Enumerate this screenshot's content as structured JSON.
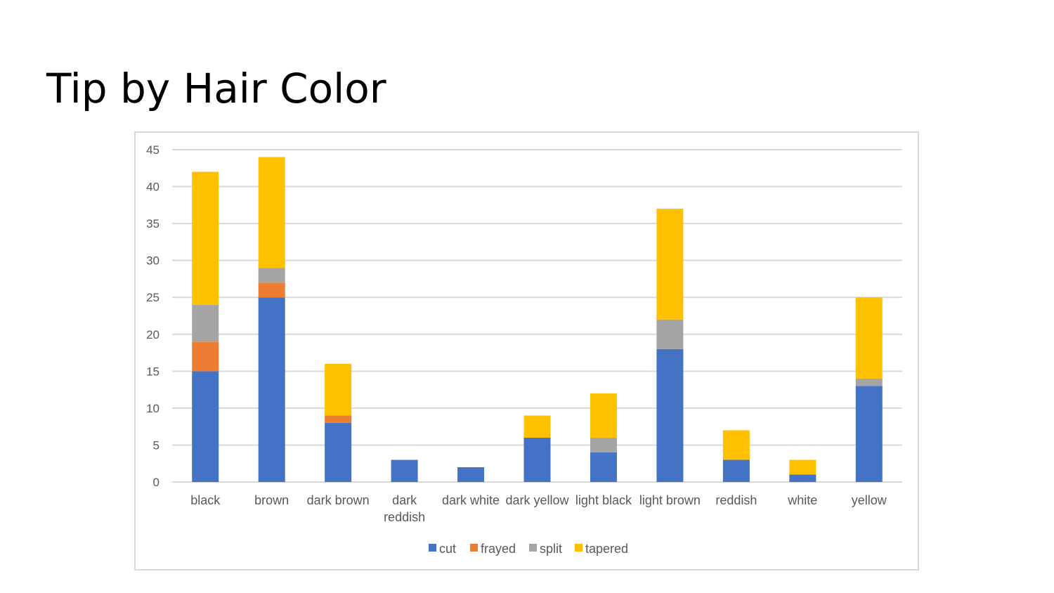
{
  "slide": {
    "title": "Tip by Hair Color"
  },
  "chart_data": {
    "type": "bar",
    "stacked": true,
    "title": "",
    "xlabel": "",
    "ylabel": "",
    "ylim": [
      0,
      45
    ],
    "yticks": [
      0,
      5,
      10,
      15,
      20,
      25,
      30,
      35,
      40,
      45
    ],
    "grid": true,
    "legend_position": "bottom",
    "categories": [
      "black",
      "brown",
      "dark brown",
      "dark reddish",
      "dark white",
      "dark yellow",
      "light black",
      "light brown",
      "reddish",
      "white",
      "yellow"
    ],
    "category_lines": [
      [
        "black"
      ],
      [
        "brown"
      ],
      [
        "dark brown"
      ],
      [
        "dark",
        "reddish"
      ],
      [
        "dark white"
      ],
      [
        "dark yellow"
      ],
      [
        "light black"
      ],
      [
        "light brown"
      ],
      [
        "reddish"
      ],
      [
        "white"
      ],
      [
        "yellow"
      ]
    ],
    "series": [
      {
        "name": "cut",
        "color": "#4472c4",
        "values": [
          15,
          25,
          8,
          3,
          2,
          6,
          4,
          18,
          3,
          1,
          13
        ]
      },
      {
        "name": "frayed",
        "color": "#ed7d31",
        "values": [
          4,
          2,
          1,
          0,
          0,
          0,
          0,
          0,
          0,
          0,
          0
        ]
      },
      {
        "name": "split",
        "color": "#a5a5a5",
        "values": [
          5,
          2,
          0,
          0,
          0,
          0,
          2,
          4,
          0,
          0,
          1
        ]
      },
      {
        "name": "tapered",
        "color": "#ffc000",
        "values": [
          18,
          15,
          7,
          0,
          0,
          3,
          6,
          15,
          4,
          2,
          11
        ]
      }
    ],
    "gridline_color": "#d9d9d9"
  }
}
